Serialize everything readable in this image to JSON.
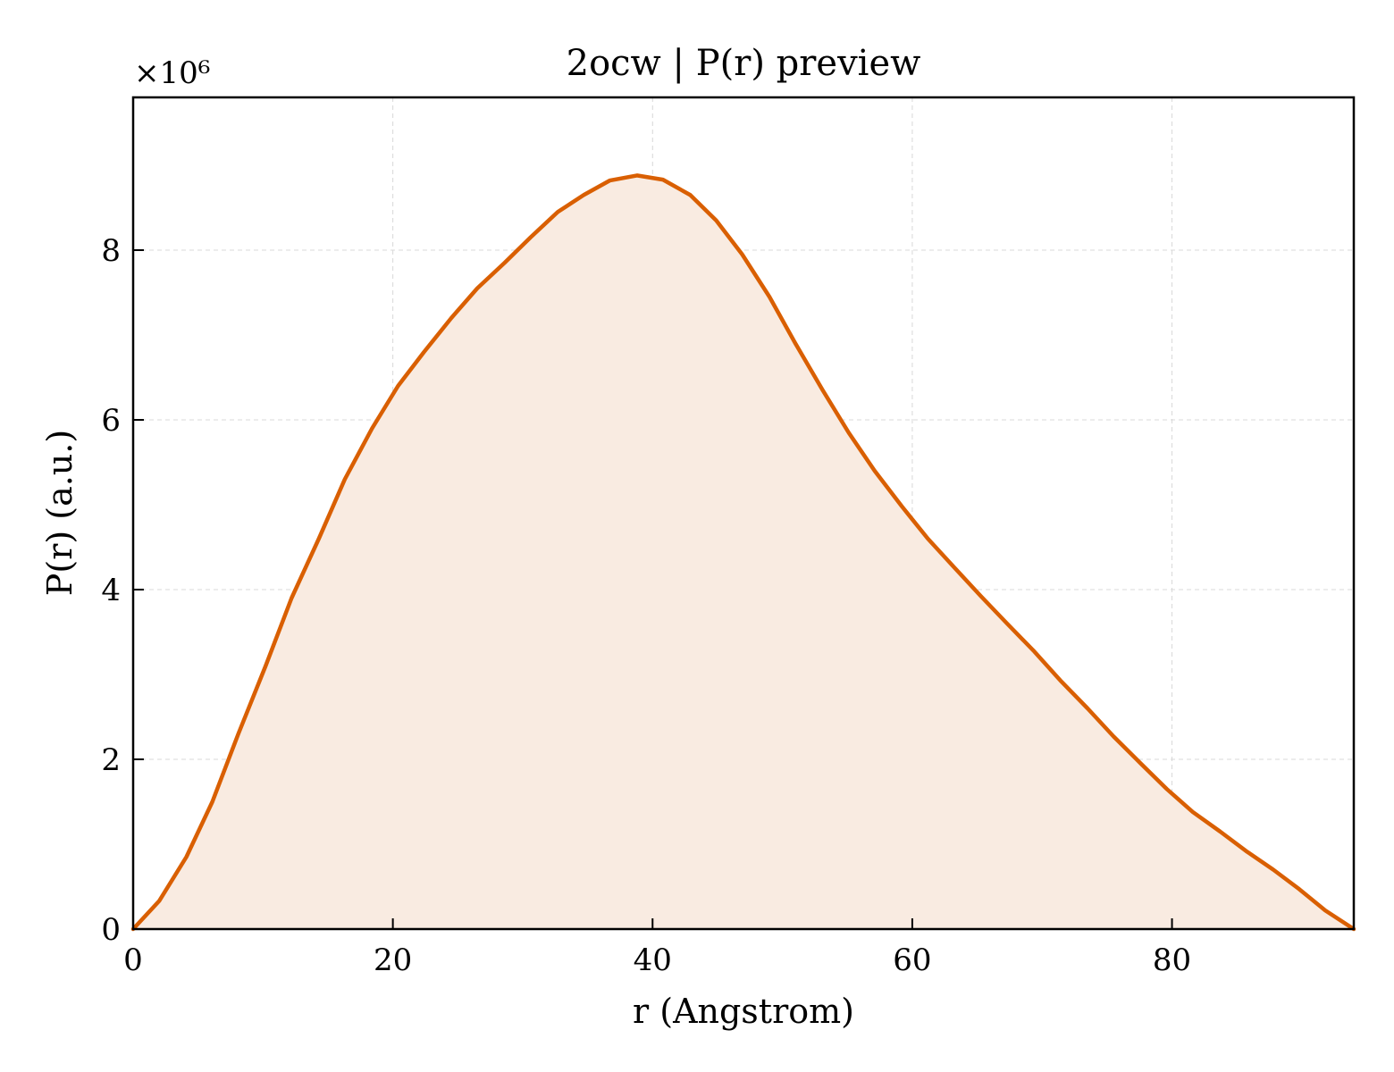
{
  "chart_data": {
    "type": "area",
    "title": "2ocw | P(r) preview",
    "xlabel": "r (Angstrom)",
    "ylabel": "P(r) (a.u.)",
    "y_offset_label": "×10⁶",
    "xlim": [
      0,
      94
    ],
    "ylim": [
      0,
      9.8
    ],
    "y_scale_factor": 1000000,
    "x_ticks": [
      0,
      20,
      40,
      60,
      80
    ],
    "x_tick_labels": [
      "0",
      "20",
      "40",
      "60",
      "80"
    ],
    "y_ticks": [
      0,
      2,
      4,
      6,
      8
    ],
    "y_tick_labels": [
      "0",
      "2",
      "4",
      "6",
      "8"
    ],
    "grid": true,
    "tick_direction": "in",
    "colors": {
      "line": "#d95f02",
      "fill": "#f9ebe1"
    },
    "series": [
      {
        "x": [
          0,
          2,
          4.1,
          6.1,
          8.1,
          10.2,
          12.2,
          14.3,
          16.3,
          18.4,
          20.4,
          22.4,
          24.5,
          26.5,
          28.6,
          30.6,
          32.7,
          34.7,
          36.7,
          38.8,
          40.8,
          42.9,
          44.9,
          46.9,
          49,
          51,
          53.1,
          55.1,
          57.1,
          59.2,
          61.2,
          63.3,
          65.3,
          67.3,
          69.4,
          71.4,
          73.5,
          75.5,
          77.6,
          79.6,
          81.6,
          83.7,
          85.7,
          87.8,
          89.8,
          91.8,
          94
        ],
        "y": [
          0,
          0.33,
          0.85,
          1.5,
          2.3,
          3.1,
          3.9,
          4.6,
          5.3,
          5.9,
          6.4,
          6.8,
          7.2,
          7.55,
          7.85,
          8.15,
          8.45,
          8.65,
          8.82,
          8.88,
          8.83,
          8.65,
          8.35,
          7.95,
          7.45,
          6.9,
          6.35,
          5.85,
          5.4,
          4.98,
          4.6,
          4.25,
          3.92,
          3.6,
          3.27,
          2.93,
          2.6,
          2.27,
          1.95,
          1.65,
          1.38,
          1.15,
          0.92,
          0.7,
          0.47,
          0.22,
          0
        ]
      }
    ]
  }
}
